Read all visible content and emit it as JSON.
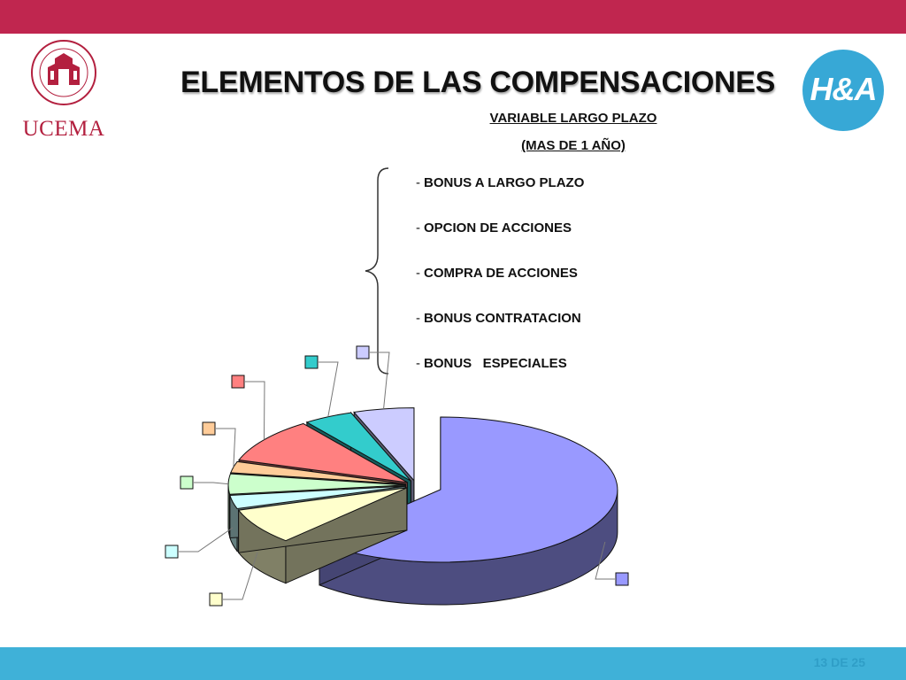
{
  "slide": {
    "title": "ELEMENTOS DE LAS COMPENSACIONES",
    "subtitle_line1": "VARIABLE LARGO PLAZO",
    "subtitle_line2": "(MAS DE 1 AÑO)",
    "page_indicator": "13 DE 25"
  },
  "logos": {
    "ucema_text": "UCEMA",
    "ucema_seal_text": "UNIVERSIDAD DEL CEMA",
    "ucema_seal_year": "MCMLXXVIII",
    "ha_text": "H&A"
  },
  "list_items": [
    {
      "label": "BONUS A LARGO PLAZO"
    },
    {
      "label": "OPCION DE ACCIONES"
    },
    {
      "label": "COMPRA DE ACCIONES"
    },
    {
      "label": "BONUS CONTRATACION"
    },
    {
      "label": "BONUS   ESPECIALES"
    }
  ],
  "list_dash": "-",
  "colors": {
    "top_bar": "#c0264f",
    "bottom_bar": "#3fb1d8",
    "ha_circle": "#37a8d6"
  },
  "chart_data": {
    "type": "pie",
    "title": "",
    "style": "3d exploded",
    "legend": "color boxes only, no labels",
    "slices": [
      {
        "value": 62.0,
        "color": "#9999ff"
      },
      {
        "value": 8.0,
        "color": "#ffffcc"
      },
      {
        "value": 3.0,
        "color": "#ccffff"
      },
      {
        "value": 4.5,
        "color": "#ccffcc"
      },
      {
        "value": 2.5,
        "color": "#ffcc99"
      },
      {
        "value": 10.0,
        "color": "#ff8080"
      },
      {
        "value": 4.5,
        "color": "#33cccc"
      },
      {
        "value": 5.5,
        "color": "#ccccff"
      }
    ]
  }
}
